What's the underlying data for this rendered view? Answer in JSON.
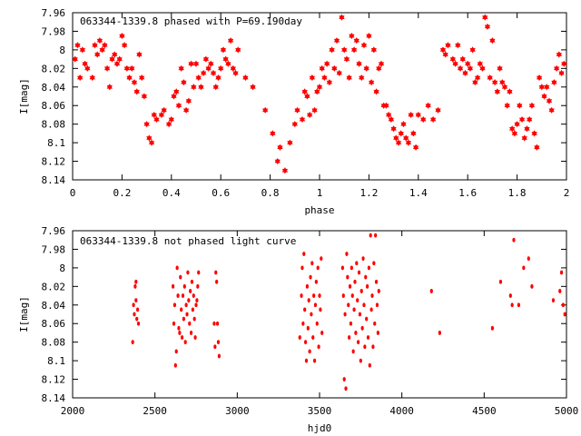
{
  "chart_data": [
    {
      "type": "scatter",
      "title": "063344-1339.8 phased with P=69.190day",
      "xlabel": "phase",
      "ylabel": "I[mag]",
      "xlim": [
        0,
        2
      ],
      "ylim": [
        7.96,
        8.14
      ],
      "y_inverted": true,
      "x_ticks": [
        0,
        0.2,
        0.4,
        0.6,
        0.8,
        1,
        1.2,
        1.4,
        1.6,
        1.8,
        2
      ],
      "x_tick_labels": [
        "0",
        "0.2",
        "0.4",
        "0.6",
        "0.8",
        "1",
        "1.2",
        "1.4",
        "1.6",
        "1.8",
        "2"
      ],
      "y_ticks": [
        7.96,
        7.98,
        8.0,
        8.02,
        8.04,
        8.06,
        8.08,
        8.1,
        8.12,
        8.14
      ],
      "y_tick_labels": [
        "7.96",
        "7.98",
        "8",
        "8.02",
        "8.04",
        "8.06",
        "8.08",
        "8.1",
        "8.12",
        "8.14"
      ],
      "marker": "star",
      "color": "#ff0000",
      "grid": false,
      "points": [
        [
          0.01,
          8.01
        ],
        [
          0.02,
          7.995
        ],
        [
          0.03,
          8.03
        ],
        [
          0.04,
          8.0
        ],
        [
          0.05,
          8.015
        ],
        [
          0.06,
          8.02
        ],
        [
          0.08,
          8.03
        ],
        [
          0.09,
          7.995
        ],
        [
          0.1,
          8.005
        ],
        [
          0.11,
          7.99
        ],
        [
          0.12,
          8.0
        ],
        [
          0.13,
          7.995
        ],
        [
          0.14,
          8.02
        ],
        [
          0.15,
          8.04
        ],
        [
          0.16,
          8.01
        ],
        [
          0.17,
          8.005
        ],
        [
          0.18,
          8.015
        ],
        [
          0.19,
          8.01
        ],
        [
          0.2,
          7.985
        ],
        [
          0.21,
          7.995
        ],
        [
          0.22,
          8.02
        ],
        [
          0.23,
          8.03
        ],
        [
          0.24,
          8.02
        ],
        [
          0.25,
          8.035
        ],
        [
          0.26,
          8.045
        ],
        [
          0.27,
          8.005
        ],
        [
          0.28,
          8.03
        ],
        [
          0.29,
          8.05
        ],
        [
          0.3,
          8.08
        ],
        [
          0.31,
          8.095
        ],
        [
          0.32,
          8.1
        ],
        [
          0.33,
          8.07
        ],
        [
          0.34,
          8.075
        ],
        [
          0.36,
          8.07
        ],
        [
          0.37,
          8.065
        ],
        [
          0.39,
          8.08
        ],
        [
          0.4,
          8.075
        ],
        [
          0.41,
          8.05
        ],
        [
          0.42,
          8.045
        ],
        [
          0.43,
          8.06
        ],
        [
          0.44,
          8.02
        ],
        [
          0.45,
          8.035
        ],
        [
          0.46,
          8.065
        ],
        [
          0.47,
          8.055
        ],
        [
          0.48,
          8.015
        ],
        [
          0.49,
          8.04
        ],
        [
          0.5,
          8.015
        ],
        [
          0.51,
          8.03
        ],
        [
          0.52,
          8.04
        ],
        [
          0.53,
          8.025
        ],
        [
          0.54,
          8.01
        ],
        [
          0.55,
          8.02
        ],
        [
          0.56,
          8.015
        ],
        [
          0.57,
          8.025
        ],
        [
          0.58,
          8.04
        ],
        [
          0.59,
          8.03
        ],
        [
          0.6,
          8.02
        ],
        [
          0.61,
          8.0
        ],
        [
          0.62,
          8.01
        ],
        [
          0.63,
          8.015
        ],
        [
          0.64,
          7.99
        ],
        [
          0.65,
          8.02
        ],
        [
          0.66,
          8.025
        ],
        [
          0.67,
          8.0
        ],
        [
          0.7,
          8.03
        ],
        [
          0.73,
          8.04
        ],
        [
          0.78,
          8.065
        ],
        [
          0.81,
          8.09
        ],
        [
          0.83,
          8.12
        ],
        [
          0.84,
          8.105
        ],
        [
          0.86,
          8.13
        ],
        [
          0.88,
          8.1
        ],
        [
          0.9,
          8.08
        ],
        [
          0.91,
          8.065
        ],
        [
          0.93,
          8.075
        ],
        [
          0.94,
          8.045
        ],
        [
          0.95,
          8.05
        ],
        [
          0.96,
          8.07
        ],
        [
          0.97,
          8.03
        ],
        [
          0.98,
          8.065
        ],
        [
          0.99,
          8.045
        ],
        [
          1.0,
          8.04
        ],
        [
          1.01,
          8.02
        ],
        [
          1.02,
          8.03
        ],
        [
          1.03,
          8.015
        ],
        [
          1.04,
          8.035
        ],
        [
          1.05,
          8.0
        ],
        [
          1.06,
          8.02
        ],
        [
          1.07,
          7.99
        ],
        [
          1.08,
          8.025
        ],
        [
          1.09,
          7.965
        ],
        [
          1.1,
          8.0
        ],
        [
          1.11,
          8.01
        ],
        [
          1.12,
          8.03
        ],
        [
          1.13,
          7.985
        ],
        [
          1.14,
          8.0
        ],
        [
          1.15,
          7.99
        ],
        [
          1.16,
          8.015
        ],
        [
          1.17,
          8.03
        ],
        [
          1.18,
          7.995
        ],
        [
          1.19,
          8.02
        ],
        [
          1.2,
          7.985
        ],
        [
          1.21,
          8.035
        ],
        [
          1.22,
          8.0
        ],
        [
          1.23,
          8.045
        ],
        [
          1.24,
          8.02
        ],
        [
          1.25,
          8.015
        ],
        [
          1.26,
          8.06
        ],
        [
          1.27,
          8.06
        ],
        [
          1.28,
          8.07
        ],
        [
          1.29,
          8.075
        ],
        [
          1.3,
          8.085
        ],
        [
          1.31,
          8.095
        ],
        [
          1.32,
          8.1
        ],
        [
          1.33,
          8.09
        ],
        [
          1.34,
          8.08
        ],
        [
          1.35,
          8.095
        ],
        [
          1.36,
          8.1
        ],
        [
          1.37,
          8.07
        ],
        [
          1.38,
          8.09
        ],
        [
          1.39,
          8.105
        ],
        [
          1.4,
          8.07
        ],
        [
          1.42,
          8.075
        ],
        [
          1.44,
          8.06
        ],
        [
          1.46,
          8.075
        ],
        [
          1.48,
          8.065
        ],
        [
          1.5,
          8.0
        ],
        [
          1.51,
          8.005
        ],
        [
          1.52,
          7.995
        ],
        [
          1.54,
          8.01
        ],
        [
          1.55,
          8.015
        ],
        [
          1.56,
          7.995
        ],
        [
          1.57,
          8.02
        ],
        [
          1.58,
          8.01
        ],
        [
          1.59,
          8.025
        ],
        [
          1.6,
          8.015
        ],
        [
          1.61,
          8.02
        ],
        [
          1.62,
          8.0
        ],
        [
          1.63,
          8.035
        ],
        [
          1.64,
          8.03
        ],
        [
          1.65,
          8.015
        ],
        [
          1.66,
          8.02
        ],
        [
          1.67,
          7.965
        ],
        [
          1.68,
          7.975
        ],
        [
          1.69,
          8.03
        ],
        [
          1.7,
          7.99
        ],
        [
          1.71,
          8.035
        ],
        [
          1.72,
          8.045
        ],
        [
          1.73,
          8.02
        ],
        [
          1.74,
          8.035
        ],
        [
          1.75,
          8.04
        ],
        [
          1.76,
          8.06
        ],
        [
          1.77,
          8.045
        ],
        [
          1.78,
          8.085
        ],
        [
          1.79,
          8.09
        ],
        [
          1.8,
          8.08
        ],
        [
          1.81,
          8.06
        ],
        [
          1.82,
          8.075
        ],
        [
          1.83,
          8.095
        ],
        [
          1.84,
          8.085
        ],
        [
          1.85,
          8.075
        ],
        [
          1.86,
          8.06
        ],
        [
          1.87,
          8.09
        ],
        [
          1.88,
          8.105
        ],
        [
          1.89,
          8.03
        ],
        [
          1.9,
          8.04
        ],
        [
          1.91,
          8.05
        ],
        [
          1.92,
          8.04
        ],
        [
          1.93,
          8.055
        ],
        [
          1.94,
          8.065
        ],
        [
          1.95,
          8.035
        ],
        [
          1.96,
          8.02
        ],
        [
          1.97,
          8.005
        ],
        [
          1.98,
          8.025
        ],
        [
          1.99,
          8.015
        ]
      ]
    },
    {
      "type": "scatter",
      "title": "063344-1339.8 not phased light curve",
      "xlabel": "hjd0",
      "ylabel": "I[mag]",
      "xlim": [
        2000,
        5000
      ],
      "ylim": [
        7.96,
        8.14
      ],
      "y_inverted": true,
      "x_ticks": [
        2000,
        2500,
        3000,
        3500,
        4000,
        4500,
        5000
      ],
      "x_tick_labels": [
        "2000",
        "2500",
        "3000",
        "3500",
        "4000",
        "4500",
        "5000"
      ],
      "y_ticks": [
        7.96,
        7.98,
        8.0,
        8.02,
        8.04,
        8.06,
        8.08,
        8.1,
        8.12,
        8.14
      ],
      "y_tick_labels": [
        "7.96",
        "7.98",
        "8",
        "8.02",
        "8.04",
        "8.06",
        "8.08",
        "8.1",
        "8.12",
        "8.14"
      ],
      "marker": "dot",
      "color": "#ff0000",
      "grid": false,
      "points": [
        [
          2365,
          8.08
        ],
        [
          2370,
          8.04
        ],
        [
          2375,
          8.05
        ],
        [
          2380,
          8.02
        ],
        [
          2385,
          8.035
        ],
        [
          2390,
          8.055
        ],
        [
          2395,
          8.045
        ],
        [
          2400,
          8.06
        ],
        [
          2385,
          8.015
        ],
        [
          2610,
          8.02
        ],
        [
          2615,
          8.06
        ],
        [
          2620,
          8.04
        ],
        [
          2625,
          8.105
        ],
        [
          2630,
          8.09
        ],
        [
          2635,
          8.0
        ],
        [
          2640,
          8.03
        ],
        [
          2645,
          8.065
        ],
        [
          2650,
          8.07
        ],
        [
          2655,
          8.01
        ],
        [
          2660,
          8.045
        ],
        [
          2665,
          8.075
        ],
        [
          2670,
          8.03
        ],
        [
          2675,
          8.055
        ],
        [
          2680,
          8.02
        ],
        [
          2685,
          8.08
        ],
        [
          2690,
          8.04
        ],
        [
          2695,
          8.05
        ],
        [
          2700,
          8.005
        ],
        [
          2705,
          8.035
        ],
        [
          2710,
          8.06
        ],
        [
          2715,
          8.025
        ],
        [
          2720,
          8.07
        ],
        [
          2725,
          8.015
        ],
        [
          2730,
          8.045
        ],
        [
          2735,
          8.03
        ],
        [
          2740,
          8.055
        ],
        [
          2745,
          8.075
        ],
        [
          2750,
          8.04
        ],
        [
          2755,
          8.035
        ],
        [
          2760,
          8.02
        ],
        [
          2765,
          8.005
        ],
        [
          2860,
          8.06
        ],
        [
          2865,
          8.085
        ],
        [
          2870,
          8.005
        ],
        [
          2875,
          8.015
        ],
        [
          2880,
          8.06
        ],
        [
          2885,
          8.08
        ],
        [
          2890,
          8.095
        ],
        [
          3380,
          8.075
        ],
        [
          3390,
          8.03
        ],
        [
          3395,
          8.0
        ],
        [
          3400,
          8.06
        ],
        [
          3405,
          7.985
        ],
        [
          3410,
          8.045
        ],
        [
          3415,
          8.08
        ],
        [
          3420,
          8.1
        ],
        [
          3425,
          8.02
        ],
        [
          3430,
          8.065
        ],
        [
          3435,
          8.035
        ],
        [
          3440,
          8.09
        ],
        [
          3445,
          8.01
        ],
        [
          3450,
          8.05
        ],
        [
          3455,
          7.995
        ],
        [
          3460,
          8.075
        ],
        [
          3465,
          8.03
        ],
        [
          3470,
          8.1
        ],
        [
          3475,
          8.04
        ],
        [
          3480,
          8.015
        ],
        [
          3485,
          8.06
        ],
        [
          3490,
          8.0
        ],
        [
          3495,
          8.085
        ],
        [
          3500,
          8.03
        ],
        [
          3505,
          8.045
        ],
        [
          3510,
          7.99
        ],
        [
          3515,
          8.07
        ],
        [
          3640,
          8.0
        ],
        [
          3645,
          8.03
        ],
        [
          3650,
          8.12
        ],
        [
          3655,
          8.05
        ],
        [
          3660,
          8.13
        ],
        [
          3665,
          7.985
        ],
        [
          3670,
          8.01
        ],
        [
          3675,
          8.04
        ],
        [
          3680,
          8.075
        ],
        [
          3685,
          8.02
        ],
        [
          3690,
          8.06
        ],
        [
          3695,
          8.0
        ],
        [
          3700,
          8.03
        ],
        [
          3705,
          8.09
        ],
        [
          3710,
          8.045
        ],
        [
          3715,
          8.015
        ],
        [
          3720,
          8.07
        ],
        [
          3725,
          7.995
        ],
        [
          3730,
          8.035
        ],
        [
          3735,
          8.08
        ],
        [
          3740,
          8.005
        ],
        [
          3745,
          8.05
        ],
        [
          3750,
          8.1
        ],
        [
          3755,
          8.025
        ],
        [
          3760,
          8.065
        ],
        [
          3765,
          7.99
        ],
        [
          3770,
          8.04
        ],
        [
          3775,
          8.085
        ],
        [
          3780,
          8.01
        ],
        [
          3785,
          8.055
        ],
        [
          3790,
          8.02
        ],
        [
          3795,
          8.075
        ],
        [
          3800,
          8.0
        ],
        [
          3805,
          8.105
        ],
        [
          3810,
          7.965
        ],
        [
          3815,
          8.045
        ],
        [
          3820,
          8.03
        ],
        [
          3825,
          8.085
        ],
        [
          3830,
          7.995
        ],
        [
          3835,
          8.06
        ],
        [
          3840,
          7.965
        ],
        [
          3845,
          8.015
        ],
        [
          3850,
          8.04
        ],
        [
          3855,
          8.07
        ],
        [
          3860,
          8.025
        ],
        [
          4180,
          8.025
        ],
        [
          4230,
          8.07
        ],
        [
          4550,
          8.065
        ],
        [
          4600,
          8.015
        ],
        [
          4660,
          8.03
        ],
        [
          4670,
          8.04
        ],
        [
          4680,
          7.97
        ],
        [
          4710,
          8.04
        ],
        [
          4740,
          8.0
        ],
        [
          4770,
          7.99
        ],
        [
          4790,
          8.02
        ],
        [
          4920,
          8.035
        ],
        [
          4960,
          8.025
        ],
        [
          4970,
          8.005
        ],
        [
          4980,
          8.04
        ],
        [
          4990,
          8.05
        ]
      ]
    }
  ]
}
